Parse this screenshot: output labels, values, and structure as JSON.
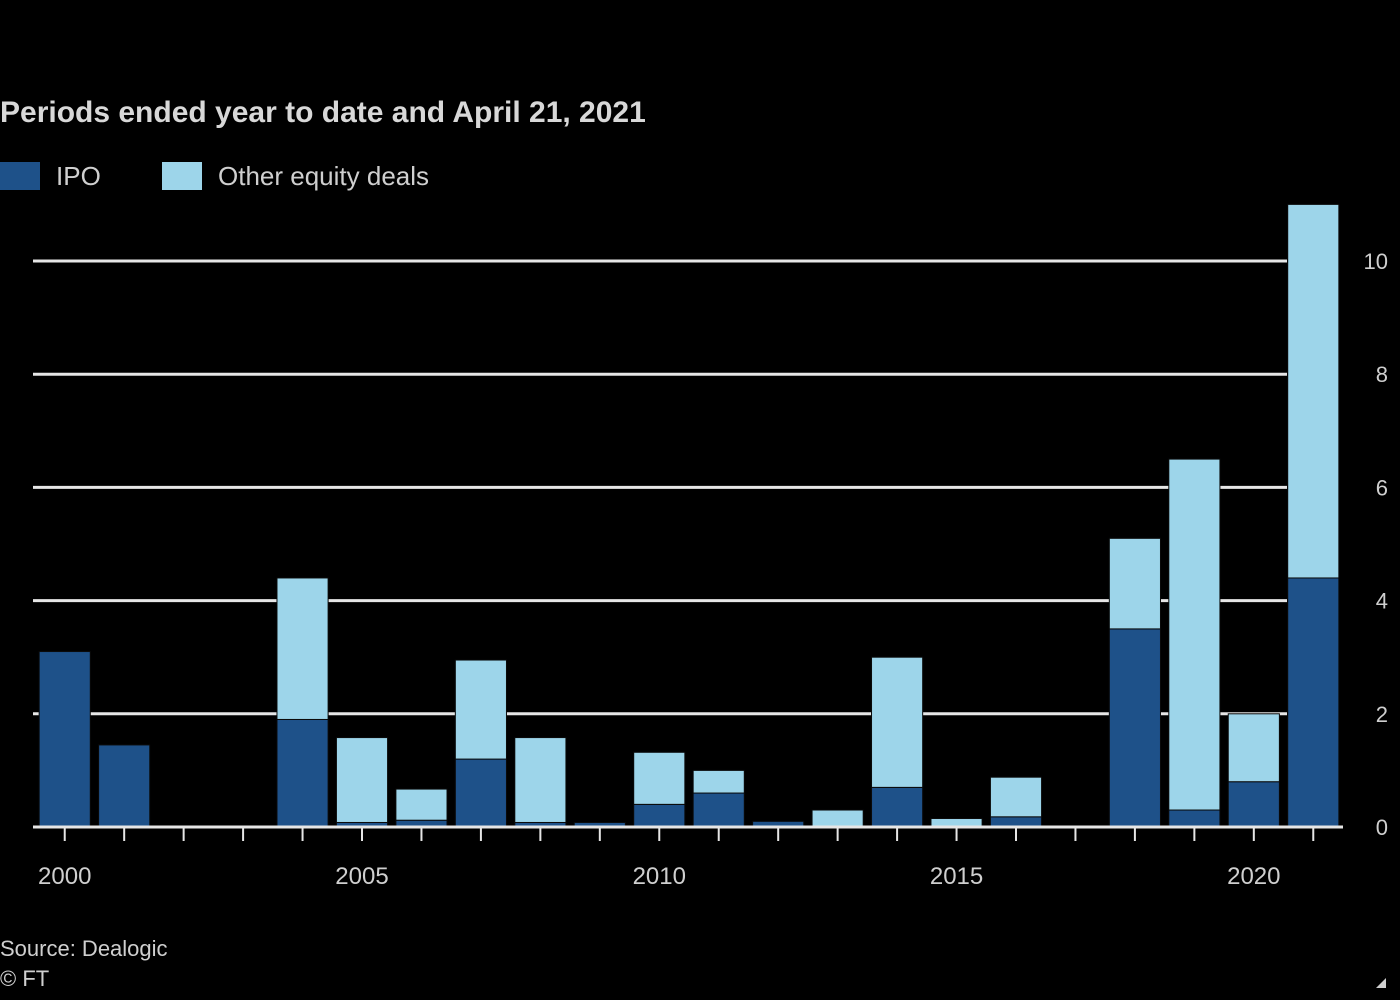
{
  "title": "Periods ended year to date and April 21, 2021",
  "source": "Source: Dealogic",
  "credit": "© FT",
  "colors": {
    "background": "#000000",
    "grid": "#e6e6e6",
    "text": "#cfcfcf",
    "ipo": "#1e5189",
    "other": "#9dd5ea"
  },
  "chart_data": {
    "type": "bar",
    "stacked": true,
    "title": "Periods ended year to date and April 21, 2021",
    "categories": [
      "2000",
      "2001",
      "2002",
      "2003",
      "2004",
      "2005",
      "2006",
      "2007",
      "2008",
      "2009",
      "2010",
      "2011",
      "2012",
      "2013",
      "2014",
      "2015",
      "2016",
      "2017",
      "2018",
      "2019",
      "2020",
      "2021"
    ],
    "x_tick_labels": [
      {
        "category": "2000",
        "label": "2000"
      },
      {
        "category": "2005",
        "label": "2005"
      },
      {
        "category": "2010",
        "label": "2010"
      },
      {
        "category": "2015",
        "label": "2015"
      },
      {
        "category": "2020",
        "label": "2020"
      }
    ],
    "series": [
      {
        "name": "IPO",
        "color": "#1e5189",
        "values": [
          3.1,
          1.45,
          0,
          0,
          1.9,
          0.08,
          0.12,
          1.2,
          0.08,
          0.08,
          0.4,
          0.6,
          0.1,
          0,
          0.7,
          0,
          0.18,
          0,
          3.5,
          0.3,
          0.8,
          4.4
        ]
      },
      {
        "name": "Other equity deals",
        "color": "#9dd5ea",
        "values": [
          0,
          0,
          0,
          0,
          2.5,
          1.5,
          0.55,
          1.75,
          1.5,
          0,
          0.92,
          0.4,
          0,
          0.3,
          2.3,
          0.15,
          0.7,
          0,
          1.6,
          6.2,
          1.2,
          6.6
        ]
      }
    ],
    "ylabel": "",
    "ylim": [
      0,
      11
    ],
    "yticks": [
      0,
      2,
      4,
      6,
      8,
      10
    ],
    "y_axis_position": "right",
    "grid": true,
    "legend_position": "top-left"
  }
}
